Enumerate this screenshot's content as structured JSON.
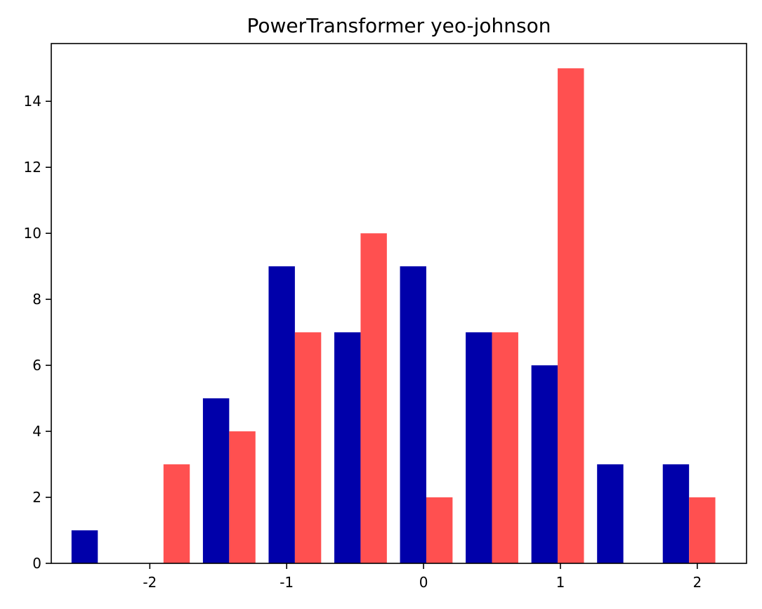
{
  "chart_data": {
    "type": "bar",
    "title": "PowerTransformer yeo-johnson",
    "xlabel": "",
    "ylabel": "",
    "xlim": [
      -2.72,
      2.36
    ],
    "ylim": [
      0,
      15.75
    ],
    "x_ticks": [
      -2,
      -1,
      0,
      1,
      2
    ],
    "y_ticks": [
      0,
      2,
      4,
      6,
      8,
      10,
      12,
      14
    ],
    "bin_edges": [
      -2.62,
      -2.14,
      -1.66,
      -1.18,
      -0.7,
      -0.22,
      0.26,
      0.74,
      1.22,
      1.7,
      2.18
    ],
    "series": [
      {
        "color": "#0000aa",
        "values": [
          1,
          0,
          5,
          9,
          7,
          9,
          7,
          6,
          3,
          3
        ]
      },
      {
        "color": "#ff5050",
        "values": [
          0,
          3,
          4,
          7,
          10,
          2,
          7,
          15,
          0,
          2
        ]
      }
    ],
    "grid": false,
    "legend": "none"
  }
}
